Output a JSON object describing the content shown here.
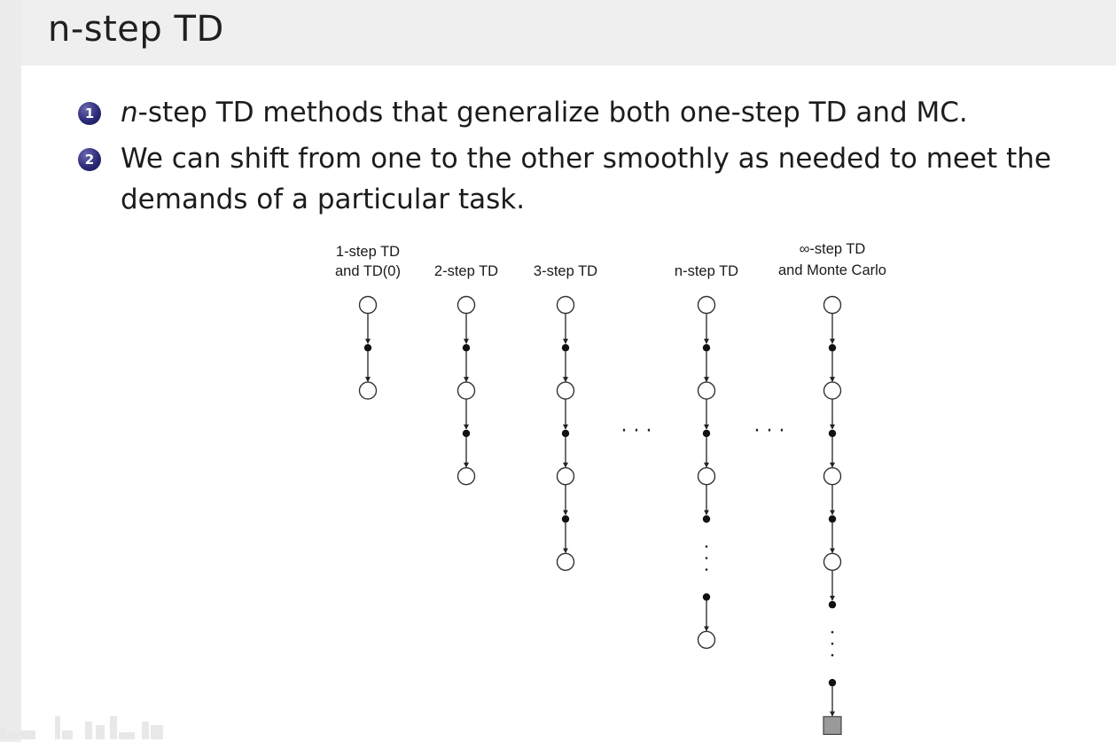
{
  "title": "n-step TD",
  "bullets": [
    {
      "number": "1",
      "text_italic": "n",
      "text": "-step TD methods that generalize both one-step TD and MC."
    },
    {
      "number": "2",
      "text_italic": "",
      "text": "We can shift from one to the other smoothly as needed to meet the demands of a particular task."
    }
  ],
  "diagram": {
    "columns": [
      {
        "label_lines": [
          "1-step TD",
          "and TD(0)"
        ]
      },
      {
        "label_lines": [
          "2-step TD"
        ]
      },
      {
        "label_lines": [
          "3-step TD"
        ]
      },
      {
        "label_lines": [
          "n-step TD"
        ]
      },
      {
        "label_lines": [
          "∞-step TD",
          "and Monte Carlo"
        ]
      }
    ],
    "ellipses": [
      "· · ·",
      "· · ·"
    ]
  }
}
